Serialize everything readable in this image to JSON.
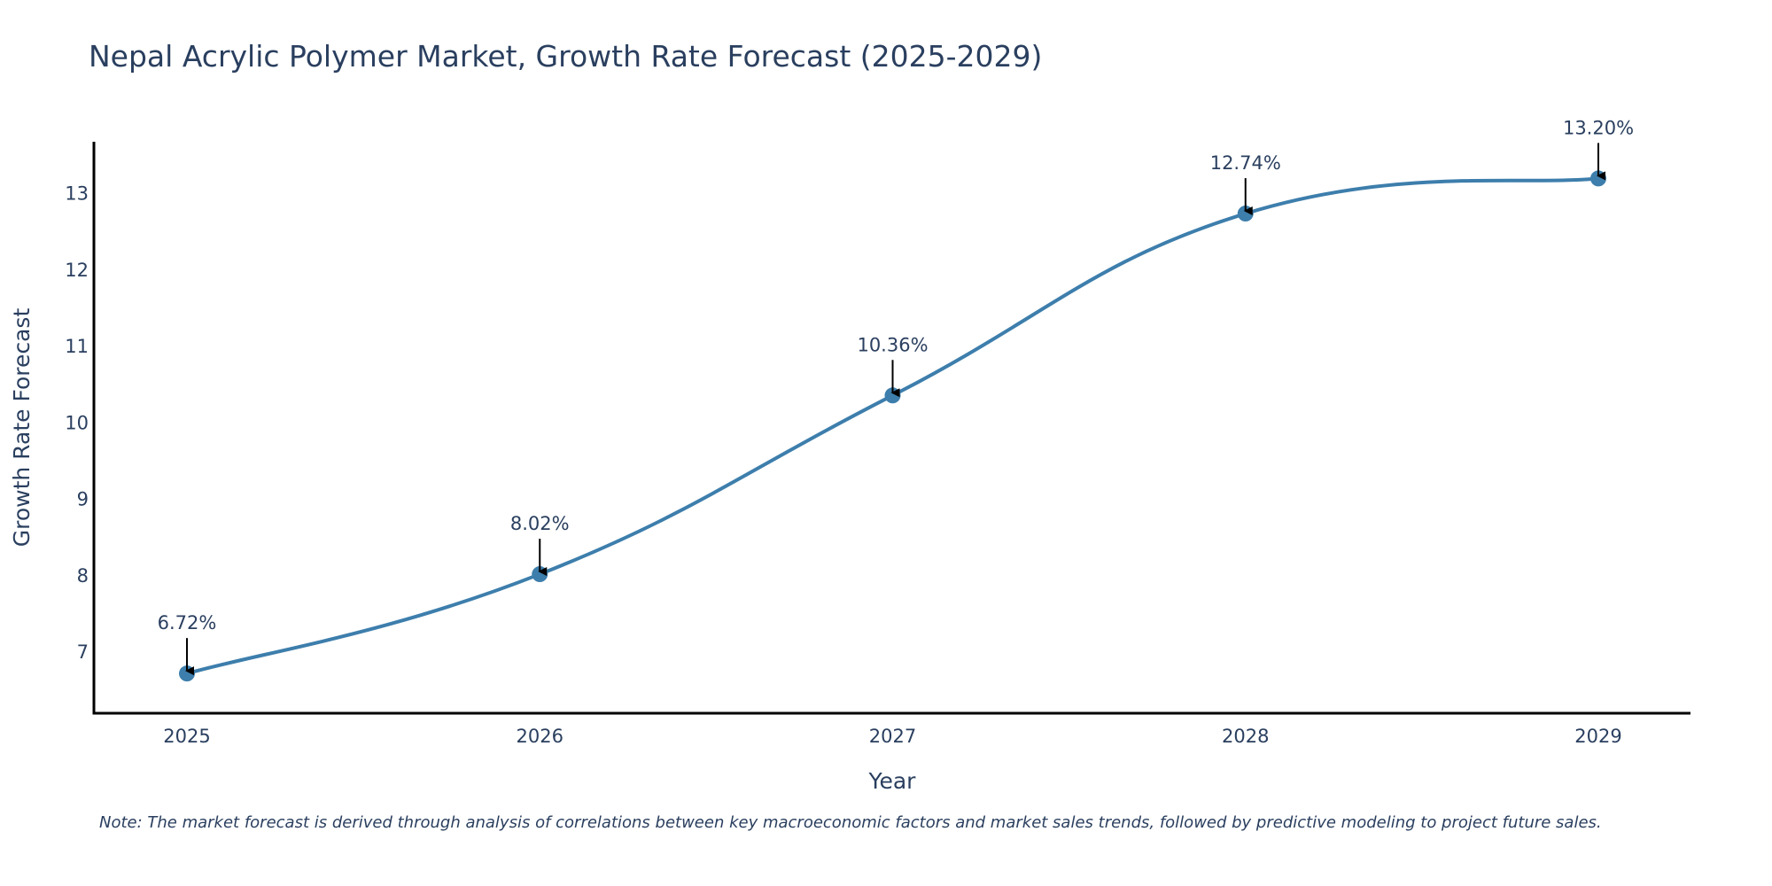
{
  "chart_data": {
    "type": "line",
    "title": "Nepal Acrylic Polymer Market, Growth Rate Forecast (2025-2029)",
    "xlabel": "Year",
    "ylabel": "Growth Rate Forecast",
    "categories": [
      "2025",
      "2026",
      "2027",
      "2028",
      "2029"
    ],
    "series": [
      {
        "name": "Growth Rate Forecast",
        "values": [
          6.72,
          8.02,
          10.36,
          12.74,
          13.2
        ]
      }
    ],
    "data_labels": [
      "6.72%",
      "8.02%",
      "10.36%",
      "12.74%",
      "13.20%"
    ],
    "yticks": [
      7,
      8,
      9,
      10,
      11,
      12,
      13
    ],
    "ylim": [
      6.2,
      13.68
    ],
    "grid": false,
    "line_color": "#3d7eac",
    "annotation_color": "#000000"
  },
  "note": "Note: The market forecast is derived through analysis of correlations between key macroeconomic factors and market sales trends, followed by predictive modeling to project future sales."
}
